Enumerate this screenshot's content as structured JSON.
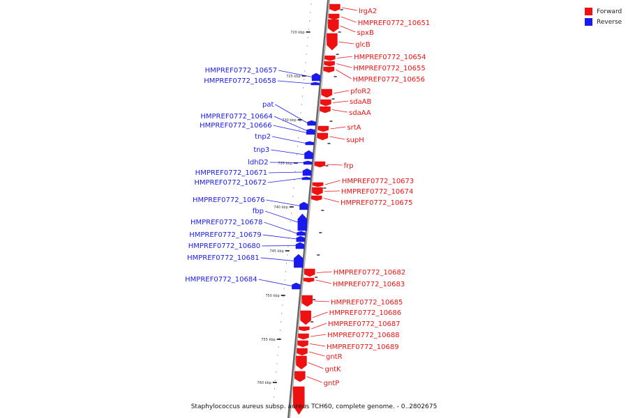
{
  "colors": {
    "forward": "#ee1111",
    "reverse": "#1a1aee",
    "axis": "#888888"
  },
  "legend": [
    {
      "label": "Forward",
      "color": "#ee1111"
    },
    {
      "label": "Reverse",
      "color": "#1a1aee"
    }
  ],
  "caption": "Staphylococcus aureus subsp. aureus TCH60, complete genome. - 0..2802675",
  "scale": {
    "unit": "kbp",
    "labels": [
      "720 kbp",
      "725 kbp",
      "730 kbp",
      "735 kbp",
      "740 kbp",
      "745 kbp",
      "750 kbp",
      "755 kbp",
      "760 kbp"
    ]
  },
  "forward_genes": [
    "lrgA2",
    "HMPREF0772_10651",
    "spxB",
    "glcB",
    "HMPREF0772_10654",
    "HMPREF0772_10655",
    "HMPREF0772_10656",
    "pfoR2",
    "sdaAB",
    "sdaAA",
    "srtA",
    "supH",
    "frp",
    "HMPREF0772_10673",
    "HMPREF0772_10674",
    "HMPREF0772_10675",
    "HMPREF0772_10682",
    "HMPREF0772_10683",
    "HMPREF0772_10685",
    "HMPREF0772_10686",
    "HMPREF0772_10687",
    "HMPREF0772_10688",
    "HMPREF0772_10689",
    "gntR",
    "gntK",
    "gntP"
  ],
  "reverse_genes": [
    "HMPREF0772_10657",
    "HMPREF0772_10658",
    "pat",
    "HMPREF0772_10664",
    "HMPREF0772_10666",
    "tnp2",
    "tnp3",
    "ldhD2",
    "HMPREF0772_10671",
    "HMPREF0772_10672",
    "HMPREF0772_10676",
    "fbp",
    "HMPREF0772_10678",
    "HMPREF0772_10679",
    "HMPREF0772_10680",
    "HMPREF0772_10681",
    "HMPREF0772_10684"
  ]
}
